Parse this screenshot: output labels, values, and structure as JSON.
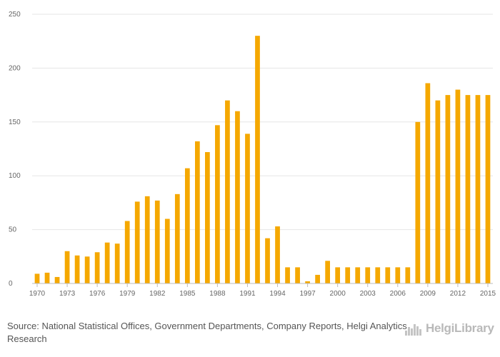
{
  "chart_data": {
    "type": "bar",
    "title": "",
    "xlabel": "",
    "ylabel": "",
    "ylim": [
      0,
      250
    ],
    "y_ticks": [
      0,
      50,
      100,
      150,
      200,
      250
    ],
    "bar_color": "#f5a800",
    "grid": true,
    "categories": [
      "1970",
      "1971",
      "1972",
      "1973",
      "1974",
      "1975",
      "1976",
      "1977",
      "1978",
      "1979",
      "1980",
      "1981",
      "1982",
      "1983",
      "1984",
      "1985",
      "1986",
      "1987",
      "1988",
      "1989",
      "1990",
      "1991",
      "1992",
      "1993",
      "1994",
      "1995",
      "1996",
      "1997",
      "1998",
      "1999",
      "2000",
      "2001",
      "2002",
      "2003",
      "2004",
      "2005",
      "2006",
      "2007",
      "2008",
      "2009",
      "2010",
      "2011",
      "2012",
      "2013",
      "2014",
      "2015"
    ],
    "x_tick_labels": [
      "1970",
      "1973",
      "1976",
      "1979",
      "1982",
      "1985",
      "1988",
      "1991",
      "1994",
      "1997",
      "2000",
      "2003",
      "2006",
      "2009",
      "2012",
      "2015"
    ],
    "values": [
      9,
      10,
      6,
      30,
      26,
      25,
      29,
      38,
      37,
      58,
      76,
      81,
      77,
      60,
      83,
      107,
      132,
      122,
      147,
      170,
      160,
      139,
      230,
      42,
      53,
      15,
      15,
      2,
      8,
      21,
      15,
      15,
      15,
      15,
      15,
      15,
      15,
      15,
      150,
      186,
      170,
      175,
      180,
      175,
      175,
      175
    ]
  },
  "footer": {
    "source_prefix": "Source:",
    "source_text": "National Statistical Offices, Government Departments, Company Reports, Helgi Analytics Research"
  },
  "brand": {
    "logo_text": "HelgiLibrary",
    "icon": "helgi-logo-icon"
  }
}
